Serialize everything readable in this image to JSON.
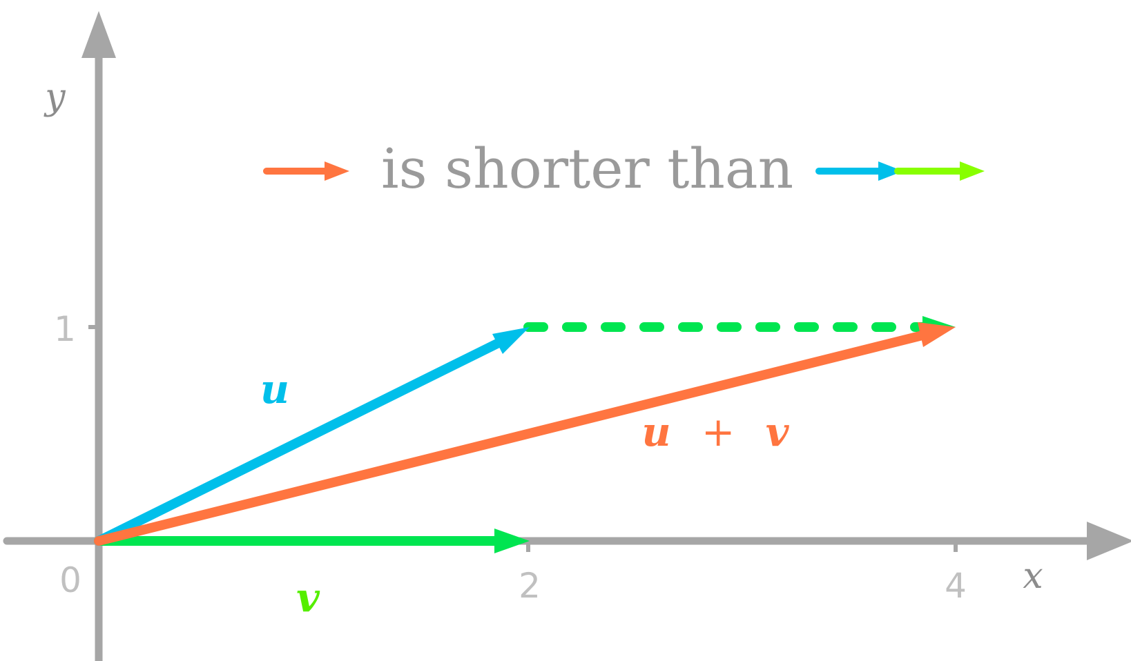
{
  "axes": {
    "x_label": "x",
    "y_label": "y",
    "x_ticks": [
      "2",
      "4"
    ],
    "y_ticks": [
      "1"
    ],
    "origin_label": "0",
    "color": "#a6a6a6"
  },
  "legend": {
    "caption": "is shorter than"
  },
  "vectors": {
    "u": {
      "label": "u",
      "x": 2,
      "y": 1,
      "color": "#00bfea"
    },
    "v": {
      "label": "v",
      "x": 2,
      "y": 0,
      "color": "#00e550",
      "label_color": "#55ee00"
    },
    "sum": {
      "label_u": "u",
      "label_plus": "+",
      "label_v": "v",
      "x": 4,
      "y": 1,
      "color": "#ff7540"
    }
  },
  "colors": {
    "legend_orange": "#ff7540",
    "legend_blue": "#00bfea",
    "legend_green": "#88ff00",
    "dashed_v": "#00e550"
  }
}
